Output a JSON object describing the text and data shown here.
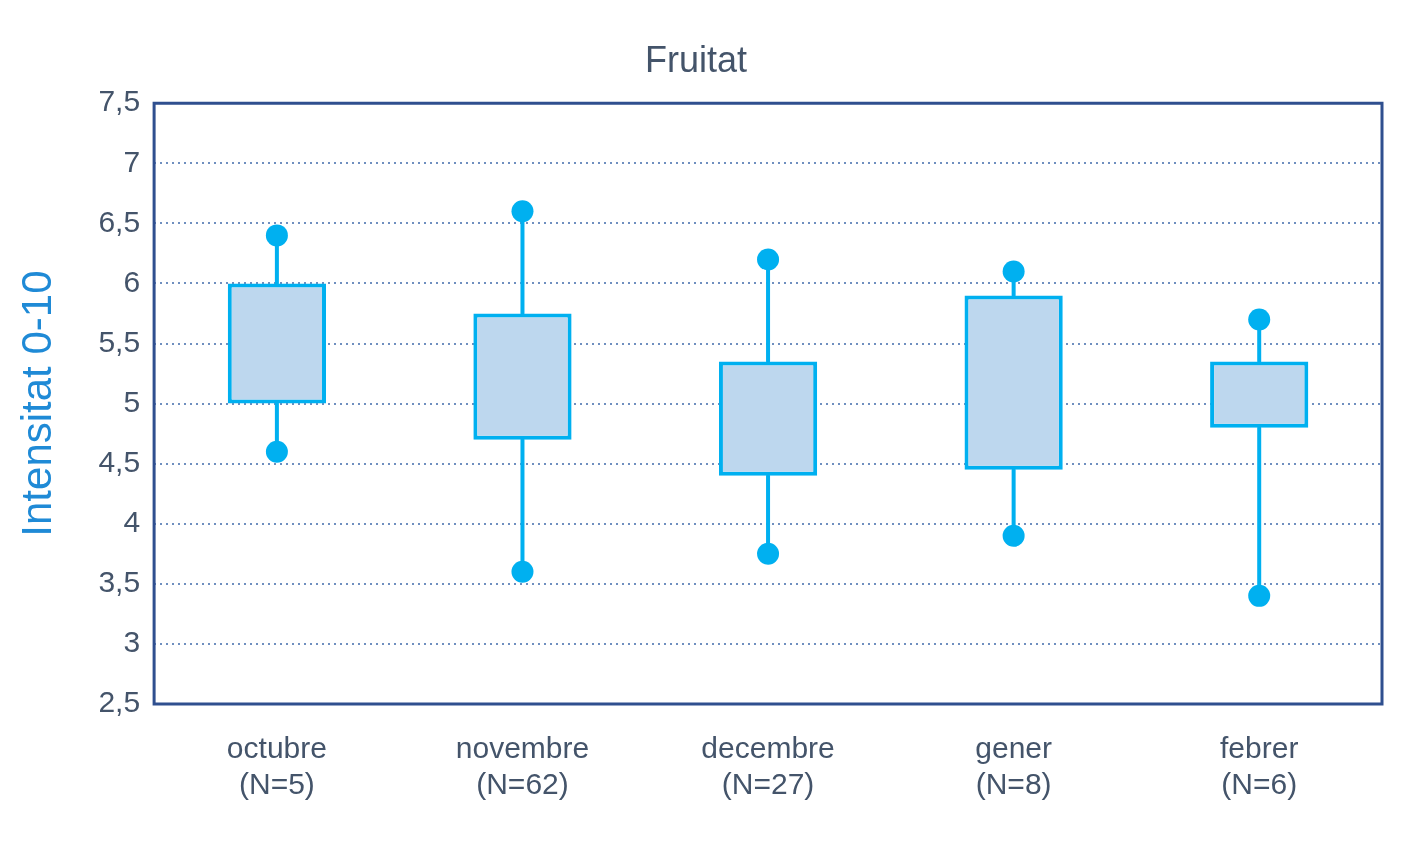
{
  "chart_data": {
    "type": "box",
    "title": "Fruitat",
    "ylabel": "Intensitat 0-10",
    "categories": [
      "octubre\n(N=5)",
      "novembre\n(N=62)",
      "decembre\n(N=27)",
      "gener\n(N=8)",
      "febrer\n(N=6)"
    ],
    "boxes": [
      {
        "low": 4.6,
        "q1": 5.0,
        "q3": 6.0,
        "high": 6.4
      },
      {
        "low": 3.6,
        "q1": 4.7,
        "q3": 5.75,
        "high": 6.6
      },
      {
        "low": 3.75,
        "q1": 4.4,
        "q3": 5.35,
        "high": 6.2
      },
      {
        "low": 3.9,
        "q1": 4.45,
        "q3": 5.9,
        "high": 6.1
      },
      {
        "low": 3.4,
        "q1": 4.8,
        "q3": 5.35,
        "high": 5.7
      }
    ],
    "color": "#00b0f0",
    "series": [
      {
        "type": "scatter",
        "color": "#00b0f0",
        "x": [
          "octubre\n(N=5)",
          "octubre\n(N=5)",
          "novembre\n(N=62)",
          "novembre\n(N=62)",
          "decembre\n(N=27)",
          "decembre\n(N=27)",
          "gener\n(N=8)",
          "gener\n(N=8)",
          "febrer\n(N=6)",
          "febrer\n(N=6)"
        ],
        "values": [
          6.4,
          4.6,
          6.6,
          3.6,
          6.2,
          3.75,
          6.1,
          3.9,
          5.7,
          3.4
        ]
      }
    ],
    "ylim": [
      2.5,
      7.5
    ],
    "yticks": [
      {
        "value": 2.5,
        "label": "2,5"
      },
      3,
      {
        "value": 3.5,
        "label": "3,5"
      },
      4,
      {
        "value": 4.5,
        "label": "4,5"
      },
      5,
      {
        "value": 5.5,
        "label": "5,5"
      },
      6,
      {
        "value": 6.5,
        "label": "6,5"
      },
      7,
      {
        "value": 7.5,
        "label": "7,5"
      }
    ],
    "grid": "y",
    "marker": "circle",
    "legend": false
  }
}
